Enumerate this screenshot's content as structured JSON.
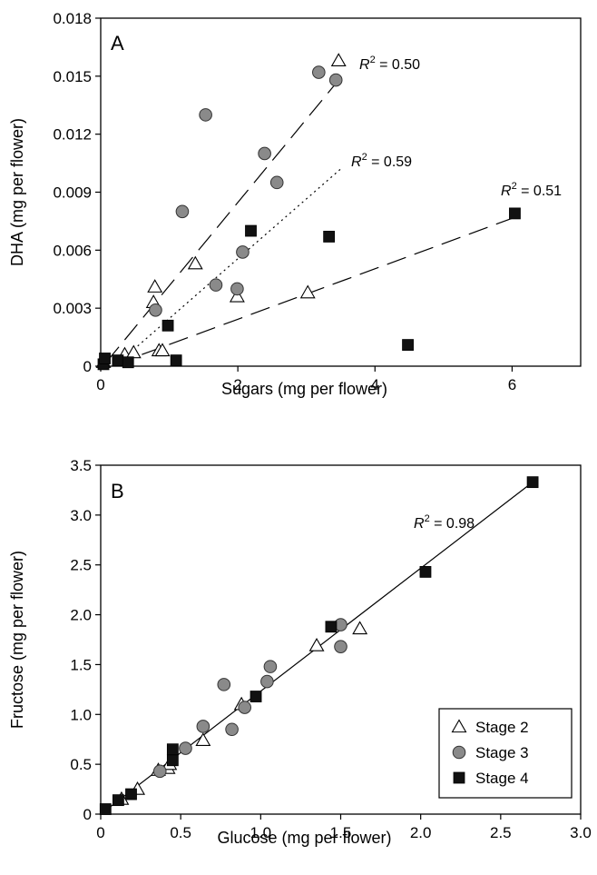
{
  "chart_data": [
    {
      "panel": "A",
      "type": "scatter",
      "xlabel": "Sugars (mg per flower)",
      "ylabel": "DHA (mg per flower)",
      "xlim": [
        0,
        7
      ],
      "ylim": [
        0,
        0.018
      ],
      "xticks": [
        "0",
        "2",
        "4",
        "6"
      ],
      "xtick_values": [
        0,
        2,
        4,
        6
      ],
      "yticks": [
        "0",
        "0.003",
        "0.006",
        "0.009",
        "0.012",
        "0.015",
        "0.018"
      ],
      "ytick_values": [
        0,
        0.003,
        0.006,
        0.009,
        0.012,
        0.015,
        0.018
      ],
      "series": [
        {
          "name": "Stage 2",
          "marker": "triangle",
          "points": [
            [
              0.04,
              0.0002
            ],
            [
              0.35,
              0.0006
            ],
            [
              0.48,
              0.0007
            ],
            [
              0.77,
              0.0033
            ],
            [
              0.79,
              0.0041
            ],
            [
              0.85,
              0.0008
            ],
            [
              0.9,
              0.0008
            ],
            [
              1.38,
              0.0053
            ],
            [
              1.99,
              0.0036
            ],
            [
              3.02,
              0.0038
            ],
            [
              3.47,
              0.0158
            ]
          ]
        },
        {
          "name": "Stage 3",
          "marker": "circle",
          "points": [
            [
              0.8,
              0.0029
            ],
            [
              1.19,
              0.008
            ],
            [
              1.53,
              0.013
            ],
            [
              1.68,
              0.0042
            ],
            [
              1.99,
              0.004
            ],
            [
              2.07,
              0.0059
            ],
            [
              2.39,
              0.011
            ],
            [
              2.57,
              0.0095
            ],
            [
              3.18,
              0.0152
            ],
            [
              3.43,
              0.0148
            ]
          ]
        },
        {
          "name": "Stage 4",
          "marker": "square",
          "points": [
            [
              0.04,
              0.0001
            ],
            [
              0.06,
              0.0004
            ],
            [
              0.25,
              0.0003
            ],
            [
              0.4,
              0.0002
            ],
            [
              0.98,
              0.0021
            ],
            [
              1.1,
              0.0003
            ],
            [
              2.19,
              0.007
            ],
            [
              3.33,
              0.0067
            ],
            [
              4.48,
              0.0011
            ],
            [
              6.04,
              0.0079
            ]
          ]
        }
      ],
      "fits": [
        {
          "series": "Stage 2",
          "r2": "= 0.50",
          "x": [
            0.08,
            3.47
          ],
          "y": [
            0.0002,
            0.0148
          ]
        },
        {
          "series": "Stage 3",
          "r2": "= 0.59",
          "x": [
            0.3,
            3.5
          ],
          "y": [
            0.0003,
            0.0102
          ]
        },
        {
          "series": "Stage 4",
          "r2": "= 0.51",
          "x": [
            0.6,
            6.04
          ],
          "y": [
            0.0006,
            0.0077
          ]
        }
      ]
    },
    {
      "panel": "B",
      "type": "scatter",
      "xlabel": "Glucose (mg per flower)",
      "ylabel": "Fructose (mg per flower)",
      "xlim": [
        0,
        3
      ],
      "ylim": [
        0,
        3.5
      ],
      "xticks": [
        "0",
        "0.5",
        "1.0",
        "1.5",
        "2.0",
        "2.5",
        "3.0"
      ],
      "xtick_values": [
        0,
        0.5,
        1,
        1.5,
        2,
        2.5,
        3
      ],
      "yticks": [
        "0",
        "0.5",
        "1.0",
        "1.5",
        "2.0",
        "2.5",
        "3.0",
        "3.5"
      ],
      "ytick_values": [
        0,
        0.5,
        1,
        1.5,
        2,
        2.5,
        3,
        3.5
      ],
      "series": [
        {
          "name": "Stage 2",
          "marker": "triangle",
          "points": [
            [
              0.13,
              0.15
            ],
            [
              0.23,
              0.25
            ],
            [
              0.36,
              0.44
            ],
            [
              0.42,
              0.46
            ],
            [
              0.43,
              0.5
            ],
            [
              0.64,
              0.74
            ],
            [
              0.88,
              1.1
            ],
            [
              1.35,
              1.69
            ],
            [
              1.62,
              1.86
            ]
          ]
        },
        {
          "name": "Stage 3",
          "marker": "circle",
          "points": [
            [
              0.37,
              0.43
            ],
            [
              0.53,
              0.66
            ],
            [
              0.64,
              0.88
            ],
            [
              0.77,
              1.3
            ],
            [
              0.82,
              0.85
            ],
            [
              0.9,
              1.07
            ],
            [
              1.04,
              1.33
            ],
            [
              1.06,
              1.48
            ],
            [
              1.5,
              1.68
            ],
            [
              1.5,
              1.9
            ]
          ]
        },
        {
          "name": "Stage 4",
          "marker": "square",
          "points": [
            [
              0.03,
              0.05
            ],
            [
              0.11,
              0.14
            ],
            [
              0.19,
              0.2
            ],
            [
              0.45,
              0.54
            ],
            [
              0.45,
              0.65
            ],
            [
              0.97,
              1.18
            ],
            [
              1.44,
              1.88
            ],
            [
              2.03,
              2.43
            ],
            [
              2.7,
              3.33
            ]
          ]
        }
      ],
      "fits": [
        {
          "series": "all",
          "r2": "= 0.98",
          "x": [
            0.0,
            2.7
          ],
          "y": [
            0.0,
            3.33
          ]
        }
      ],
      "legend": {
        "position": "bottom-right",
        "entries": [
          "Stage 2",
          "Stage 3",
          "Stage 4"
        ]
      }
    }
  ]
}
